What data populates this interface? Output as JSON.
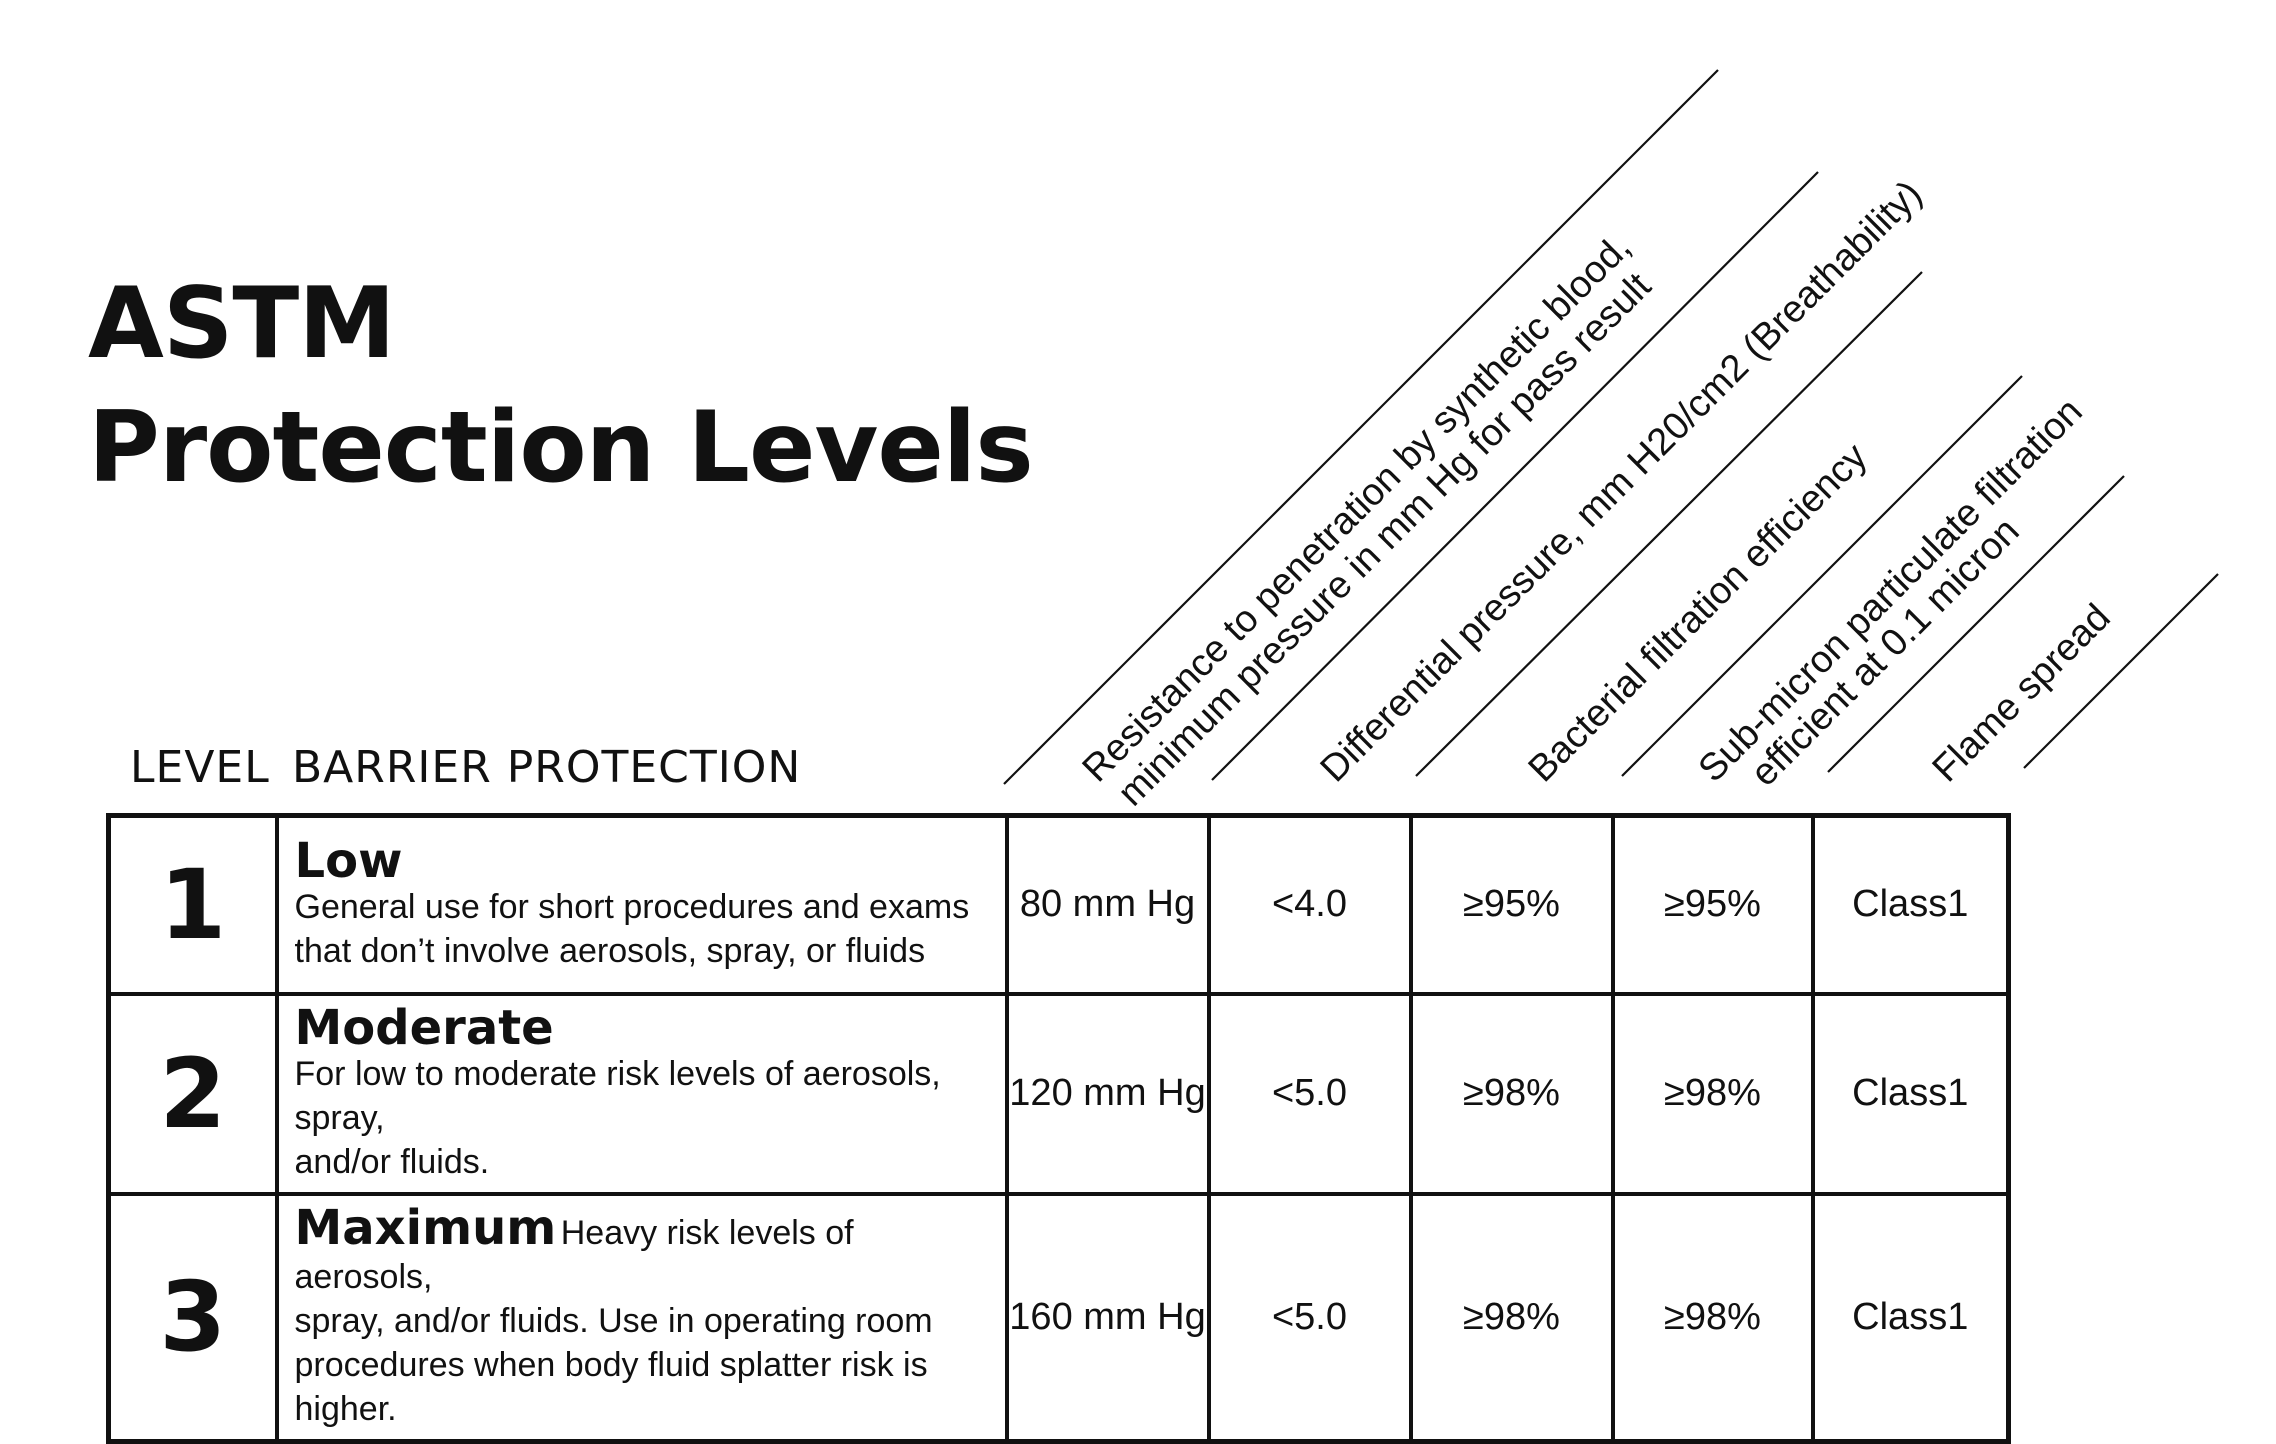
{
  "title": {
    "line1": "ASTM",
    "line2": "Protection Levels"
  },
  "column_headings": {
    "level": "LEVEL",
    "barrier": "BARRIER PROTECTION"
  },
  "diagonal_headers": [
    {
      "line1": "Resistance to penetration by synthetic blood,",
      "line2": "minimum pressure in mm Hg for pass result"
    },
    {
      "line1": "Differential pressure, mm H20/cm2 (Breathability)",
      "line2": ""
    },
    {
      "line1": "Bacterial filtration efficiency",
      "line2": ""
    },
    {
      "line1": "Sub-micron particulate filtration",
      "line2": "efficient at 0.1 micron"
    },
    {
      "line1": "Flame spread",
      "line2": ""
    }
  ],
  "rows": [
    {
      "level": "1",
      "name": "Low",
      "desc_line1": "General use for short procedures and exams",
      "desc_line2": "that don’t involve aerosols, spray, or fluids",
      "fluid_resistance": "80 mm Hg",
      "differential_pressure": "<4.0",
      "bacterial_filtration": "≥95%",
      "submicron_filtration": "≥95%",
      "flame_spread": "Class1"
    },
    {
      "level": "2",
      "name": "Moderate",
      "desc_line1": "For low to moderate risk levels of aerosols, spray,",
      "desc_line2": "and/or fluids.",
      "fluid_resistance": "120 mm Hg",
      "differential_pressure": "<5.0",
      "bacterial_filtration": "≥98%",
      "submicron_filtration": "≥98%",
      "flame_spread": "Class1"
    },
    {
      "level": "3",
      "name": "Maximum",
      "desc_inline": "Heavy risk levels of aerosols,",
      "desc_line1": "spray, and/or fluids. Use in operating room",
      "desc_line2": "procedures when body fluid splatter risk is higher.",
      "fluid_resistance": "160 mm Hg",
      "differential_pressure": "<5.0",
      "bacterial_filtration": "≥98%",
      "submicron_filtration": "≥98%",
      "flame_spread": "Class1"
    }
  ]
}
